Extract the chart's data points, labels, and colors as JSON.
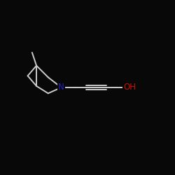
{
  "bg": "#080808",
  "bond_color": "#cccccc",
  "N_color": "#2020bb",
  "O_color": "#cc1100",
  "figsize": [
    2.5,
    2.5
  ],
  "dpi": 100,
  "xlim": [
    -1,
    11
  ],
  "ylim": [
    -1,
    11
  ]
}
